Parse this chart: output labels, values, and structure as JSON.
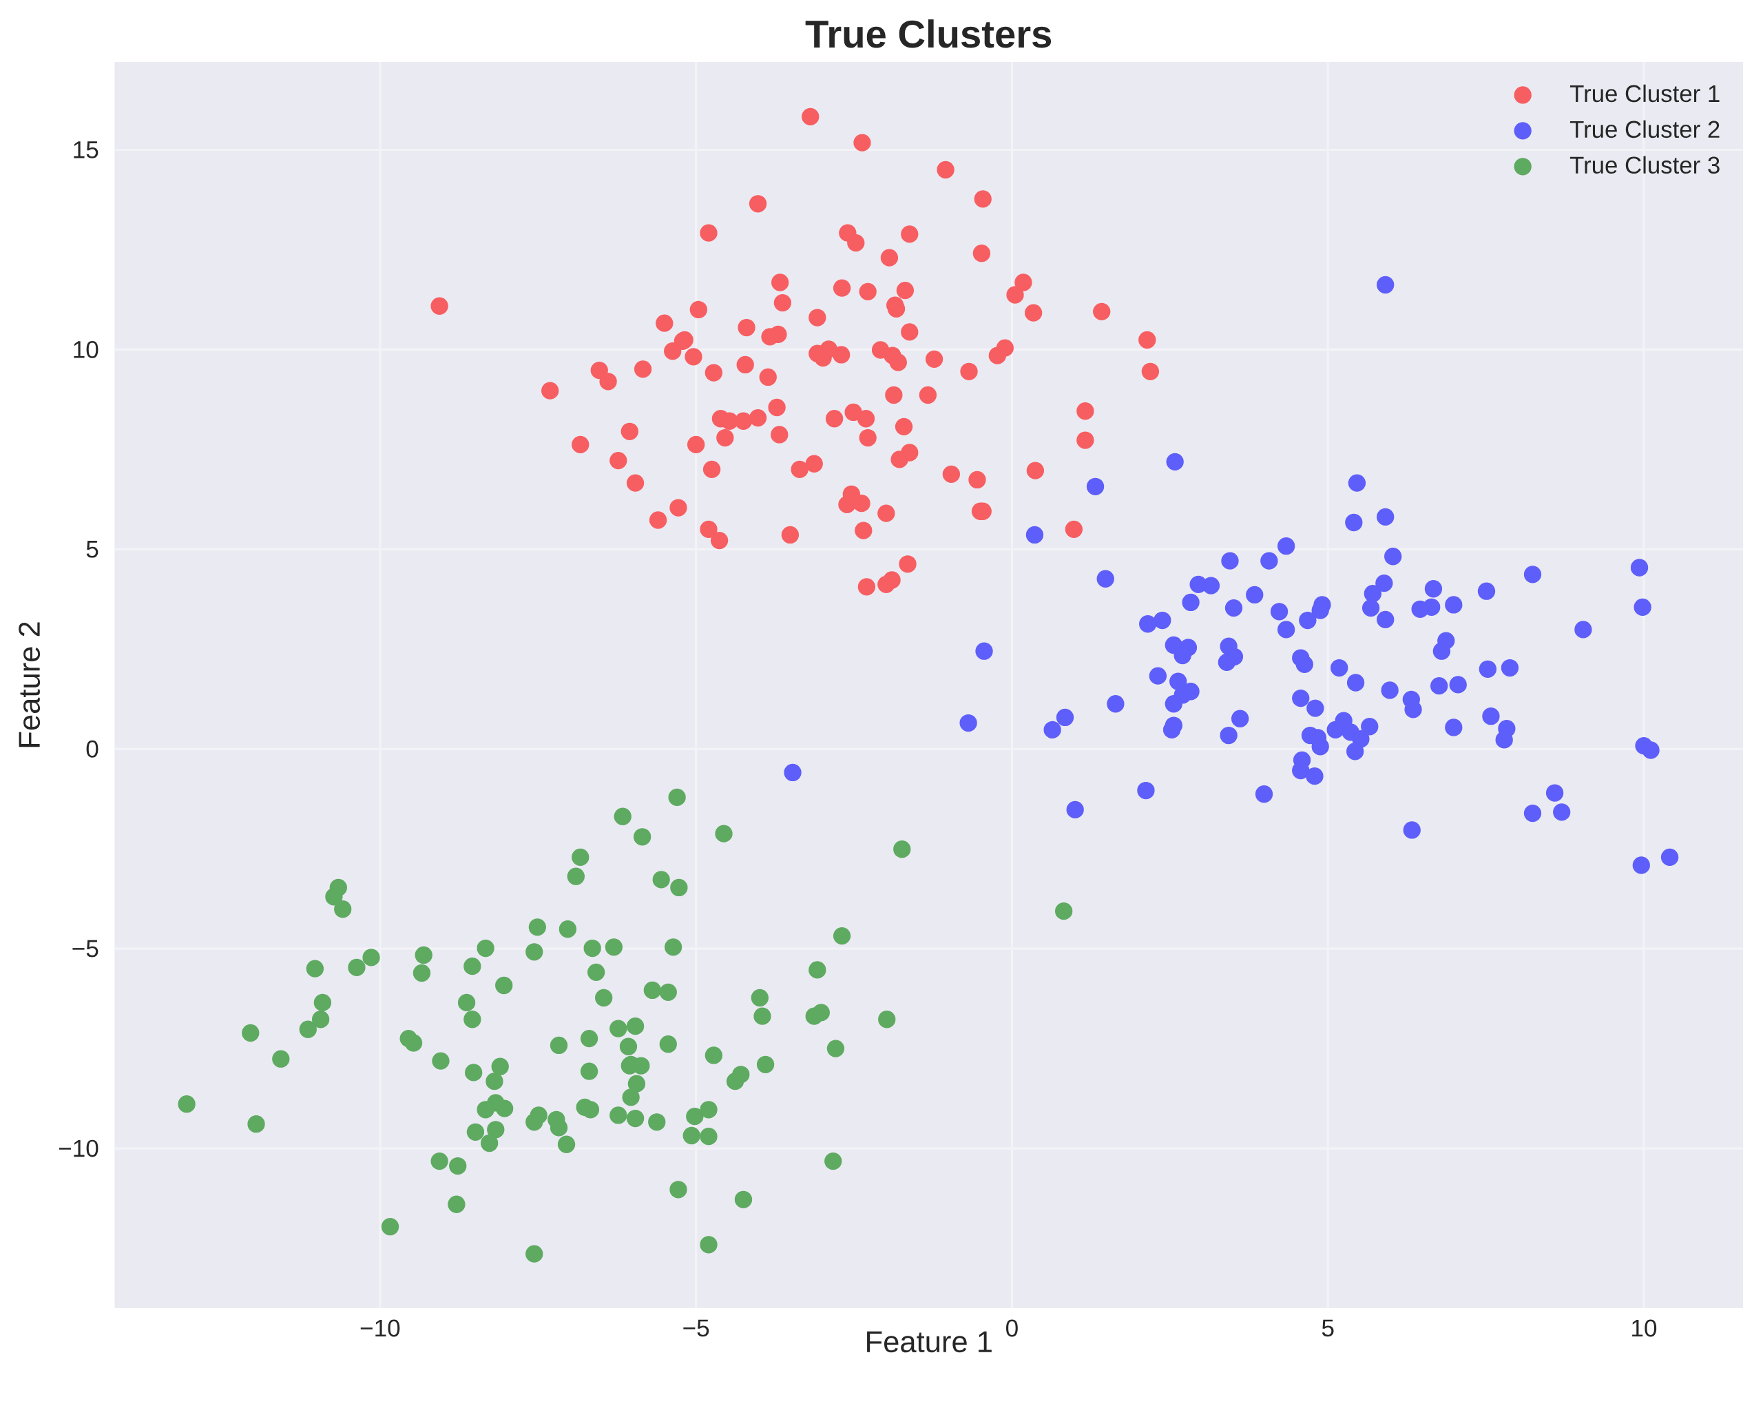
{
  "chart_data": {
    "type": "scatter",
    "title": "True Clusters",
    "xlabel": "Feature 1",
    "ylabel": "Feature 2",
    "xlim": [
      -14.2,
      11.57
    ],
    "ylim": [
      -14.0,
      17.2
    ],
    "xticks": [
      {
        "value": -10,
        "label": "−10"
      },
      {
        "value": -5,
        "label": "−5"
      },
      0,
      5,
      10
    ],
    "yticks": [
      {
        "value": -10,
        "label": "−10"
      },
      {
        "value": -5,
        "label": "−5"
      },
      0,
      5,
      10,
      15
    ],
    "grid": true,
    "legend": "top right",
    "marker": "circle",
    "series": [
      {
        "name": "True Cluster 1",
        "color": "#f75e61",
        "x": [
          -3.19,
          -2.37,
          -1.05,
          -0.46,
          -4.02,
          -4.8,
          -2.6,
          -1.62,
          -2.47,
          -0.48,
          -1.94,
          -3.67,
          0.18,
          -2.69,
          -2.28,
          -1.69,
          0.05,
          -3.63,
          -9.06,
          -1.85,
          -1.83,
          -4.96,
          0.34,
          1.42,
          -3.08,
          -5.5,
          -4.2,
          -5.18,
          -5.21,
          -5.37,
          -3.83,
          -3.7,
          -1.62,
          2.14,
          -2.9,
          -0.11,
          -2.08,
          -3.08,
          -5.04,
          -2.99,
          -2.7,
          -1.89,
          -0.23,
          -1.23,
          -1.8,
          -4.22,
          -6.53,
          -5.84,
          -4.72,
          -0.68,
          2.19,
          -3.86,
          -6.39,
          -7.31,
          -1.87,
          -1.33,
          -3.72,
          1.16,
          -2.51,
          -4.61,
          -4.02,
          -4.47,
          -4.25,
          -2.81,
          -2.31,
          -1.71,
          -6.05,
          -4.54,
          -3.68,
          -2.28,
          1.16,
          -6.83,
          -5.0,
          -1.62,
          -1.78,
          -6.23,
          -3.13,
          -3.36,
          -4.75,
          0.37,
          -0.96,
          -0.55,
          -5.96,
          -2.54,
          -2.61,
          -2.38,
          -5.28,
          -1.99,
          -0.5,
          -0.46,
          -5.6,
          -4.8,
          0.98,
          -2.35,
          -3.51,
          -4.63,
          -1.65,
          -1.9,
          -1.99,
          -2.3
        ],
        "values": [
          15.83,
          15.18,
          14.5,
          13.77,
          13.65,
          12.92,
          12.92,
          12.89,
          12.67,
          12.41,
          12.3,
          11.68,
          11.68,
          11.54,
          11.45,
          11.48,
          11.37,
          11.17,
          11.09,
          11.11,
          11.02,
          11.0,
          10.92,
          10.95,
          10.8,
          10.66,
          10.55,
          10.24,
          10.21,
          9.96,
          10.32,
          10.38,
          10.44,
          10.24,
          10.01,
          10.04,
          9.99,
          9.9,
          9.82,
          9.79,
          9.87,
          9.85,
          9.85,
          9.76,
          9.68,
          9.62,
          9.48,
          9.51,
          9.42,
          9.45,
          9.45,
          9.31,
          9.2,
          8.97,
          8.86,
          8.86,
          8.55,
          8.46,
          8.43,
          8.27,
          8.29,
          8.21,
          8.21,
          8.27,
          8.27,
          8.07,
          7.95,
          7.79,
          7.87,
          7.79,
          7.73,
          7.62,
          7.62,
          7.42,
          7.25,
          7.22,
          7.14,
          7.0,
          7.0,
          6.97,
          6.88,
          6.74,
          6.66,
          6.38,
          6.12,
          6.15,
          6.04,
          5.9,
          5.95,
          5.95,
          5.73,
          5.5,
          5.5,
          5.47,
          5.36,
          5.22,
          4.63,
          4.23,
          4.12,
          4.06
        ]
      },
      {
        "name": "True Cluster 2",
        "color": "#5e5efa",
        "x": [
          5.91,
          2.58,
          5.46,
          1.32,
          5.41,
          5.91,
          0.36,
          4.34,
          6.03,
          3.45,
          4.07,
          9.93,
          8.24,
          1.48,
          2.95,
          3.15,
          5.89,
          6.67,
          5.71,
          7.51,
          3.84,
          2.83,
          4.91,
          6.99,
          6.64,
          5.68,
          9.98,
          3.51,
          6.46,
          4.23,
          4.88,
          5.91,
          4.68,
          2.38,
          2.15,
          4.34,
          9.04,
          6.87,
          2.56,
          3.43,
          2.79,
          -0.44,
          6.8,
          2.7,
          3.52,
          4.57,
          4.63,
          3.4,
          5.18,
          7.53,
          7.88,
          2.31,
          5.44,
          2.63,
          7.06,
          6.76,
          5.98,
          2.83,
          2.7,
          4.57,
          6.32,
          1.64,
          2.56,
          4.8,
          6.35,
          0.84,
          3.61,
          7.58,
          5.25,
          -0.69,
          2.56,
          6.99,
          7.83,
          2.53,
          5.12,
          0.64,
          5.66,
          5.36,
          3.43,
          4.72,
          4.84,
          5.52,
          7.79,
          10.0,
          4.88,
          10.11,
          5.43,
          4.59,
          4.57,
          -3.47,
          4.79,
          2.12,
          8.59,
          3.99,
          1.0,
          8.24,
          8.7,
          6.33,
          10.41,
          9.96
        ],
        "values": [
          11.62,
          7.19,
          6.66,
          6.57,
          5.67,
          5.81,
          5.36,
          5.08,
          4.82,
          4.71,
          4.71,
          4.54,
          4.37,
          4.26,
          4.12,
          4.09,
          4.15,
          4.01,
          3.89,
          3.95,
          3.86,
          3.67,
          3.61,
          3.61,
          3.55,
          3.53,
          3.55,
          3.53,
          3.5,
          3.44,
          3.47,
          3.24,
          3.22,
          3.22,
          3.13,
          2.99,
          2.99,
          2.71,
          2.6,
          2.57,
          2.54,
          2.45,
          2.45,
          2.34,
          2.31,
          2.28,
          2.12,
          2.17,
          2.03,
          2.0,
          2.03,
          1.83,
          1.66,
          1.69,
          1.61,
          1.58,
          1.47,
          1.44,
          1.35,
          1.27,
          1.24,
          1.13,
          1.13,
          1.02,
          0.99,
          0.79,
          0.76,
          0.82,
          0.71,
          0.65,
          0.59,
          0.54,
          0.51,
          0.48,
          0.48,
          0.48,
          0.56,
          0.42,
          0.34,
          0.34,
          0.28,
          0.25,
          0.23,
          0.08,
          0.06,
          -0.03,
          -0.06,
          -0.28,
          -0.54,
          -0.59,
          -0.68,
          -1.04,
          -1.1,
          -1.13,
          -1.52,
          -1.61,
          -1.58,
          -2.03,
          -2.71,
          -2.91
        ]
      },
      {
        "name": "True Cluster 3",
        "color": "#5eaa61",
        "x": [
          -5.3,
          -6.16,
          -4.56,
          -5.85,
          -1.74,
          -6.83,
          -6.9,
          -5.55,
          -10.66,
          -5.27,
          -10.73,
          -10.59,
          0.82,
          -7.51,
          -7.03,
          -2.69,
          -6.3,
          -8.33,
          -6.64,
          -5.36,
          -9.31,
          -7.56,
          -10.14,
          -11.03,
          -10.37,
          -8.54,
          -3.08,
          -6.58,
          -9.34,
          -8.04,
          -5.69,
          -5.44,
          -6.46,
          -3.99,
          -10.91,
          -8.63,
          -3.02,
          -3.13,
          -3.95,
          -10.94,
          -8.54,
          -1.98,
          -5.96,
          -6.23,
          -11.14,
          -12.05,
          -6.69,
          -5.44,
          -7.17,
          -9.55,
          -9.47,
          -2.79,
          -6.07,
          -4.72,
          -11.57,
          -9.04,
          -6.03,
          -6.05,
          -5.87,
          -8.1,
          -3.9,
          -6.69,
          -8.52,
          -4.29,
          -4.38,
          -5.94,
          -8.19,
          -6.03,
          -13.06,
          -8.17,
          -6.76,
          -6.67,
          -8.03,
          -4.8,
          -8.33,
          -5.02,
          -7.49,
          -6.23,
          -5.96,
          -7.21,
          -5.62,
          -7.56,
          -7.17,
          -11.96,
          -8.17,
          -8.49,
          -5.07,
          -4.8,
          -7.05,
          -8.27,
          -9.06,
          -2.83,
          -8.77,
          -5.28,
          -4.25,
          -8.79,
          -9.84,
          -4.8,
          -7.56
        ],
        "values": [
          -1.21,
          -1.69,
          -2.12,
          -2.2,
          -2.51,
          -2.71,
          -3.19,
          -3.27,
          -3.47,
          -3.47,
          -3.7,
          -4.01,
          -4.06,
          -4.46,
          -4.51,
          -4.68,
          -4.96,
          -4.99,
          -4.99,
          -4.96,
          -5.16,
          -5.08,
          -5.22,
          -5.5,
          -5.47,
          -5.44,
          -5.53,
          -5.59,
          -5.61,
          -5.92,
          -6.04,
          -6.09,
          -6.23,
          -6.23,
          -6.35,
          -6.35,
          -6.6,
          -6.69,
          -6.69,
          -6.77,
          -6.77,
          -6.77,
          -6.94,
          -7.0,
          -7.02,
          -7.11,
          -7.25,
          -7.39,
          -7.42,
          -7.25,
          -7.36,
          -7.5,
          -7.45,
          -7.67,
          -7.76,
          -7.81,
          -7.9,
          -7.93,
          -7.93,
          -7.95,
          -7.9,
          -8.07,
          -8.1,
          -8.15,
          -8.32,
          -8.38,
          -8.32,
          -8.72,
          -8.89,
          -8.86,
          -8.97,
          -9.03,
          -9.0,
          -9.03,
          -9.03,
          -9.2,
          -9.17,
          -9.17,
          -9.25,
          -9.28,
          -9.34,
          -9.34,
          -9.48,
          -9.39,
          -9.53,
          -9.59,
          -9.68,
          -9.7,
          -9.9,
          -9.87,
          -10.32,
          -10.32,
          -10.44,
          -11.03,
          -11.28,
          -11.4,
          -11.96,
          -12.41,
          -12.64
        ]
      }
    ]
  }
}
